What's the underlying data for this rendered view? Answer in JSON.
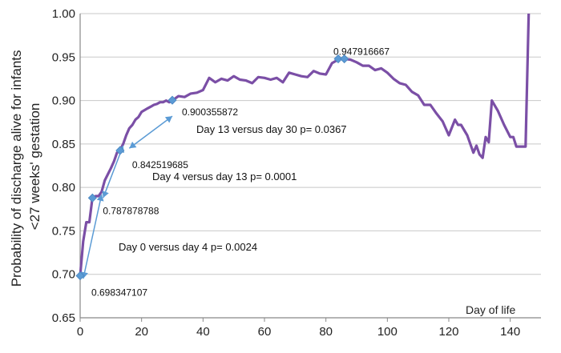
{
  "chart_data": {
    "type": "line",
    "title": "",
    "xlabel": "Day of life",
    "ylabel_lines": [
      "Probability of discharge alive for infants",
      "<27 weeks' gestation"
    ],
    "xlim": [
      0,
      150
    ],
    "ylim": [
      0.65,
      1.0
    ],
    "x_ticks": [
      0,
      20,
      40,
      60,
      80,
      100,
      120,
      140
    ],
    "y_ticks": [
      "0.65",
      "0.70",
      "0.75",
      "0.80",
      "0.85",
      "0.90",
      "0.95",
      "1.00"
    ],
    "grid": "horizontal",
    "series": [
      {
        "color": "#7b4fa6",
        "x": [
          0,
          1,
          2,
          3,
          4,
          5,
          6,
          7,
          8,
          9,
          10,
          11,
          12,
          13,
          14,
          15,
          16,
          17,
          18,
          19,
          20,
          21,
          22,
          23,
          24,
          25,
          26,
          27,
          28,
          29,
          30,
          32,
          34,
          36,
          38,
          40,
          42,
          44,
          46,
          48,
          50,
          52,
          54,
          56,
          58,
          60,
          62,
          64,
          66,
          68,
          70,
          72,
          74,
          76,
          78,
          80,
          82,
          84,
          85,
          86,
          88,
          90,
          92,
          94,
          96,
          98,
          100,
          102,
          104,
          106,
          108,
          110,
          112,
          114,
          116,
          118,
          120,
          122,
          123,
          124,
          126,
          128,
          129,
          130,
          131,
          132,
          133,
          134,
          136,
          138,
          140,
          141,
          142,
          143,
          144,
          145,
          146
        ],
        "y": [
          0.698,
          0.738,
          0.76,
          0.76,
          0.788,
          0.79,
          0.79,
          0.795,
          0.808,
          0.815,
          0.822,
          0.83,
          0.84,
          0.843,
          0.85,
          0.86,
          0.868,
          0.872,
          0.878,
          0.881,
          0.887,
          0.889,
          0.891,
          0.893,
          0.895,
          0.896,
          0.898,
          0.898,
          0.9,
          0.898,
          0.9,
          0.905,
          0.904,
          0.908,
          0.909,
          0.912,
          0.926,
          0.921,
          0.925,
          0.923,
          0.928,
          0.924,
          0.923,
          0.92,
          0.927,
          0.926,
          0.924,
          0.926,
          0.921,
          0.932,
          0.93,
          0.928,
          0.927,
          0.934,
          0.931,
          0.93,
          0.943,
          0.947,
          0.948,
          0.948,
          0.947,
          0.944,
          0.94,
          0.94,
          0.935,
          0.937,
          0.932,
          0.925,
          0.92,
          0.918,
          0.91,
          0.906,
          0.895,
          0.895,
          0.885,
          0.876,
          0.86,
          0.878,
          0.872,
          0.872,
          0.86,
          0.84,
          0.848,
          0.838,
          0.834,
          0.858,
          0.852,
          0.9,
          0.888,
          0.872,
          0.858,
          0.858,
          0.847,
          0.847,
          0.847,
          0.847,
          1.0
        ]
      }
    ],
    "markers": [
      {
        "x": 0,
        "y": 0.698347107,
        "label": "0.698347107"
      },
      {
        "x": 4,
        "y": 0.787878788,
        "label": "0.787878788"
      },
      {
        "x": 13,
        "y": 0.842519685,
        "label": "0.842519685"
      },
      {
        "x": 30,
        "y": 0.900355872,
        "label": "0.900355872"
      },
      {
        "x": 84,
        "y": 0.947916667,
        "label": "0.947916667"
      },
      {
        "x": 86,
        "y": 0.947916667,
        "label": ""
      }
    ],
    "comparisons": [
      {
        "from": [
          1,
          0.695
        ],
        "to": [
          7,
          0.792
        ],
        "label": "Day 0 versus day 4 p= 0.0024"
      },
      {
        "from": [
          7.5,
          0.788
        ],
        "to": [
          14,
          0.848
        ],
        "label": "Day 4 versus day 13 p= 0.0001"
      },
      {
        "from": [
          16,
          0.845
        ],
        "to": [
          30,
          0.882
        ],
        "label": "Day 13 versus day 30 p= 0.0367"
      }
    ]
  }
}
